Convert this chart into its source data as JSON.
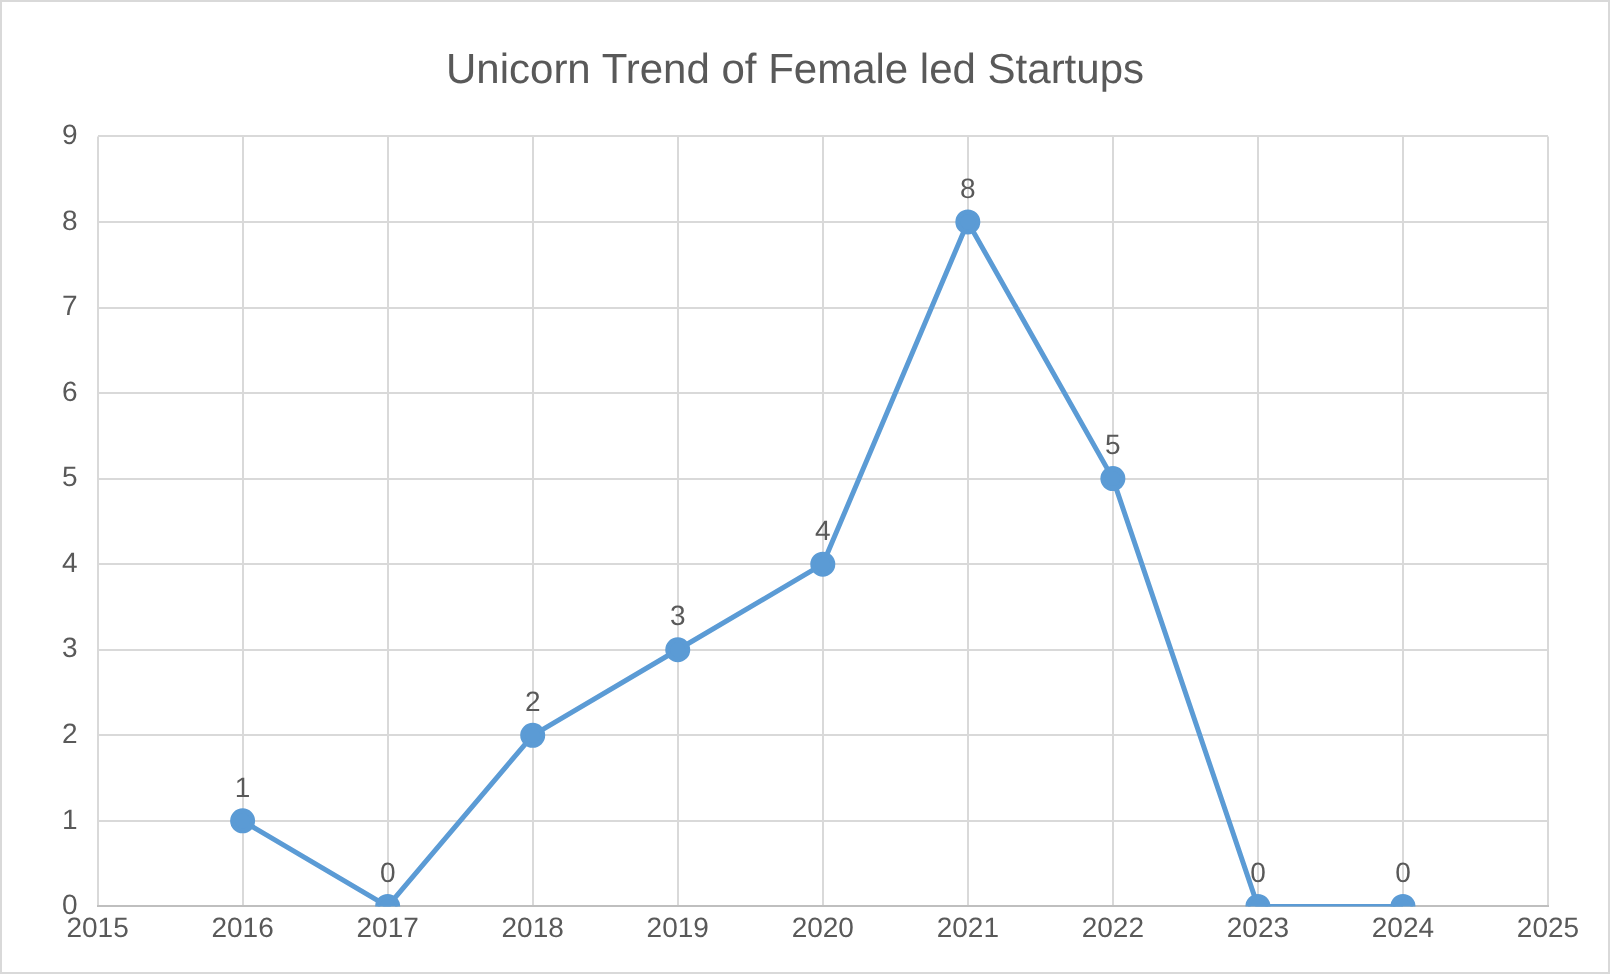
{
  "chart_data": {
    "type": "line",
    "title": "Unicorn Trend of Female led Startups",
    "x": [
      2016,
      2017,
      2018,
      2019,
      2020,
      2021,
      2022,
      2023,
      2024
    ],
    "series": [
      {
        "color": "#5b9bd5",
        "values": [
          1,
          0,
          2,
          3,
          4,
          8,
          5,
          0,
          0
        ]
      }
    ],
    "xlim": [
      2015,
      2025
    ],
    "xticks": [
      2015,
      2016,
      2017,
      2018,
      2019,
      2020,
      2021,
      2022,
      2023,
      2024,
      2025
    ],
    "ylim": [
      0,
      9
    ],
    "yticks": [
      0,
      1,
      2,
      3,
      4,
      5,
      6,
      7,
      8,
      9
    ],
    "grid": true,
    "legend": false,
    "marker": "circle",
    "line_style": "solid",
    "data_labels": true
  }
}
